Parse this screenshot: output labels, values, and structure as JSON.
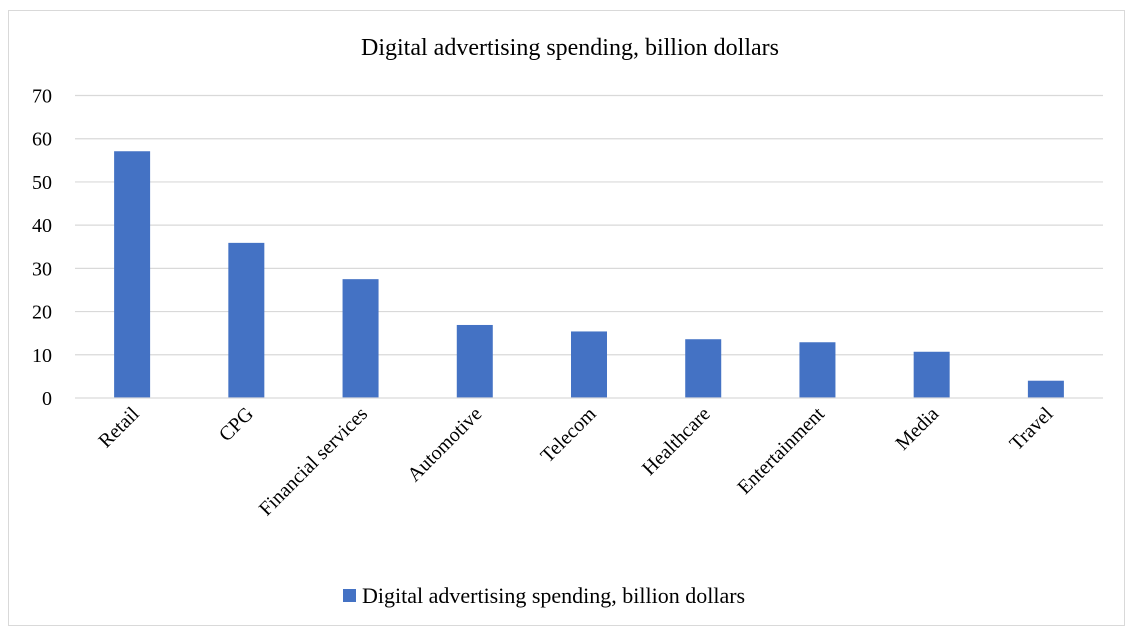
{
  "chart_data": {
    "type": "bar",
    "title": "Digital advertising spending, billion dollars",
    "xlabel": "",
    "ylabel": "",
    "categories": [
      "Retail",
      "CPG",
      "Financial services",
      "Automotive",
      "Telecom",
      "Healthcare",
      "Entertainment",
      "Media",
      "Travel"
    ],
    "series": [
      {
        "name": "Digital advertising spending, billion dollars",
        "values": [
          57.1,
          35.9,
          27.5,
          16.9,
          15.4,
          13.6,
          12.9,
          10.7,
          4.0
        ],
        "color": "#4472C4"
      }
    ],
    "ylim": [
      0,
      70
    ],
    "yticks": [
      "0",
      "10",
      "20",
      "30",
      "40",
      "50",
      "60",
      "70"
    ],
    "grid": true,
    "legend": "bottom"
  }
}
